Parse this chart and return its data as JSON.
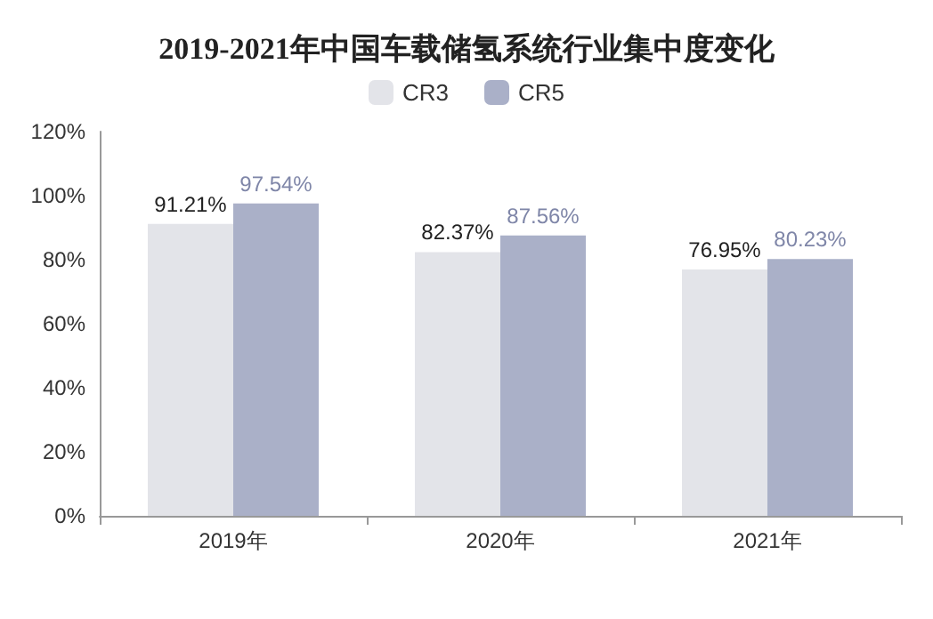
{
  "chart_data": {
    "type": "bar",
    "title": "2019-2021年中国车载储氢系统行业集中度变化",
    "categories": [
      "2019年",
      "2020年",
      "2021年"
    ],
    "series": [
      {
        "name": "CR3",
        "color": "#e3e4e9",
        "values": [
          91.21,
          82.37,
          76.95
        ],
        "value_labels": [
          "91.21%",
          "82.37%",
          "76.95%"
        ]
      },
      {
        "name": "CR5",
        "color": "#aab0c8",
        "values": [
          97.54,
          87.56,
          80.23
        ],
        "value_labels": [
          "97.54%",
          "87.56%",
          "80.23%"
        ]
      }
    ],
    "ylim": [
      0,
      120
    ],
    "yticks": [
      {
        "value": 0,
        "label": "0%"
      },
      {
        "value": 20,
        "label": "20%"
      },
      {
        "value": 40,
        "label": "40%"
      },
      {
        "value": 60,
        "label": "60%"
      },
      {
        "value": 80,
        "label": "80%"
      },
      {
        "value": 100,
        "label": "100%"
      },
      {
        "value": 120,
        "label": "120%"
      }
    ],
    "grid": false,
    "legend": "top"
  }
}
